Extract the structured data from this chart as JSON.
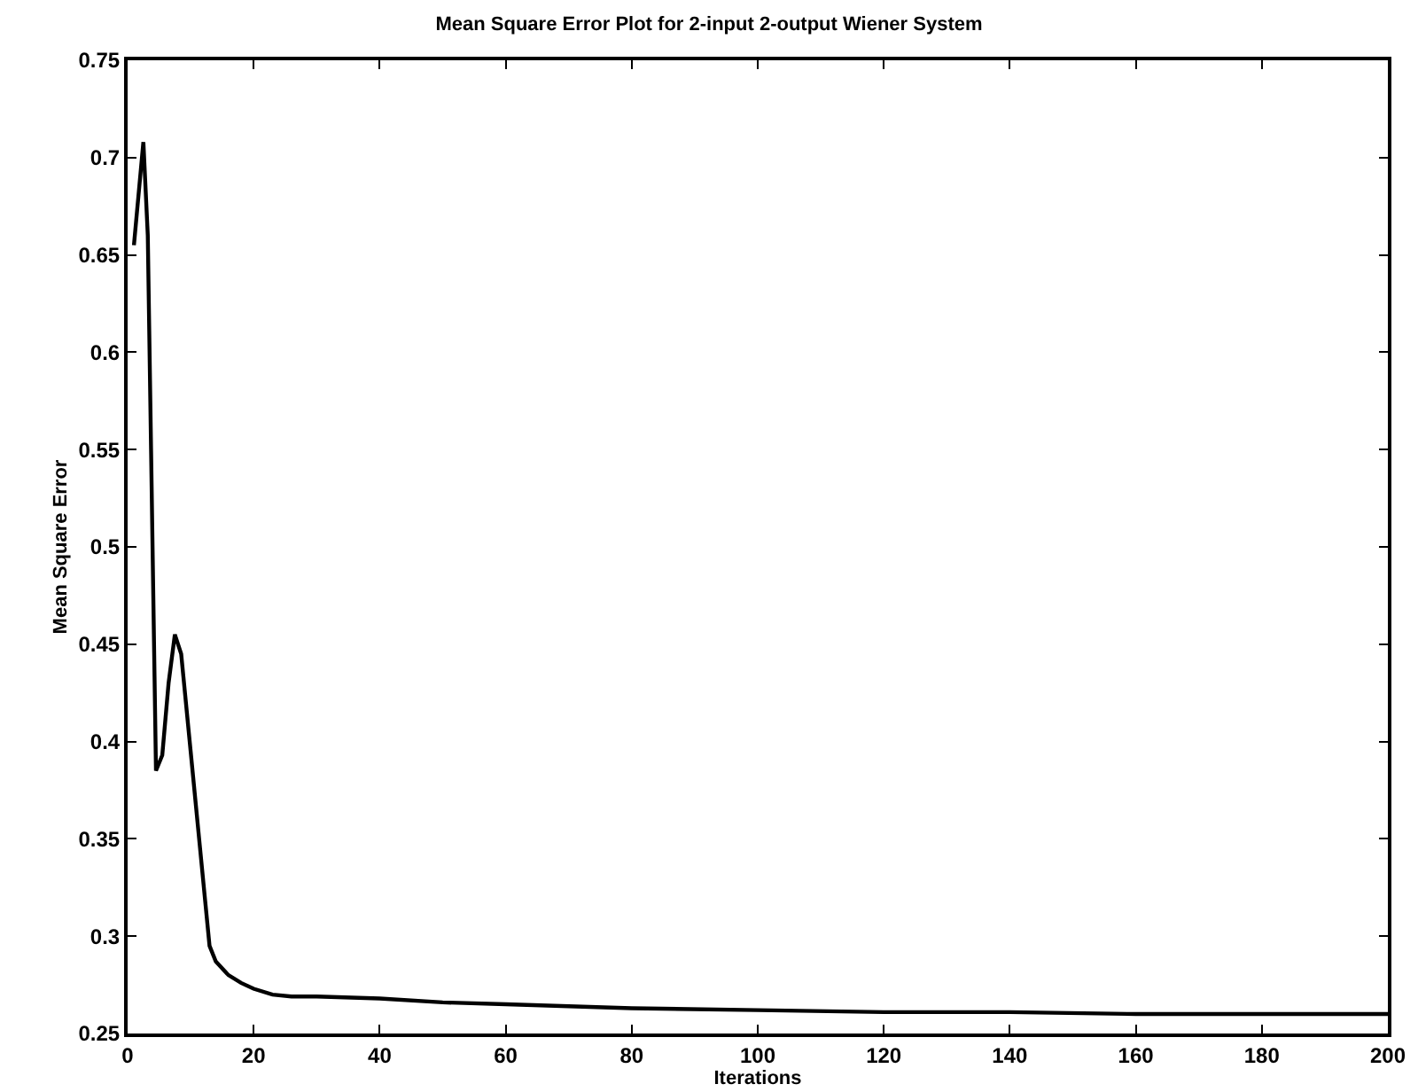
{
  "chart_data": {
    "type": "line",
    "title": "Mean Square Error Plot for 2-input 2-output Wiener System",
    "xlabel": "Iterations",
    "ylabel": "Mean Square Error",
    "series": [
      {
        "color": "#000000",
        "x": [
          1,
          2.5,
          3.2,
          4.5,
          5.5,
          6.5,
          7.5,
          8.5,
          10,
          11.5,
          13,
          14,
          16,
          18,
          20,
          23,
          26,
          30,
          40,
          50,
          60,
          80,
          100,
          120,
          140,
          160,
          180,
          200
        ],
        "values": [
          0.655,
          0.708,
          0.66,
          0.385,
          0.393,
          0.43,
          0.455,
          0.445,
          0.395,
          0.345,
          0.295,
          0.287,
          0.28,
          0.276,
          0.273,
          0.27,
          0.269,
          0.269,
          0.268,
          0.266,
          0.265,
          0.263,
          0.262,
          0.261,
          0.261,
          0.26,
          0.26,
          0.26
        ]
      }
    ],
    "xlim": [
      0,
      200
    ],
    "xticks": [
      0,
      20,
      40,
      60,
      80,
      100,
      120,
      140,
      160,
      180,
      200
    ],
    "ylim": [
      0.25,
      0.75
    ],
    "yticks": [
      0.25,
      0.3,
      0.35,
      0.4,
      0.45,
      0.5,
      0.55,
      0.6,
      0.65,
      0.7,
      0.75
    ],
    "grid": false,
    "marker": "none",
    "line_style": "solid"
  }
}
